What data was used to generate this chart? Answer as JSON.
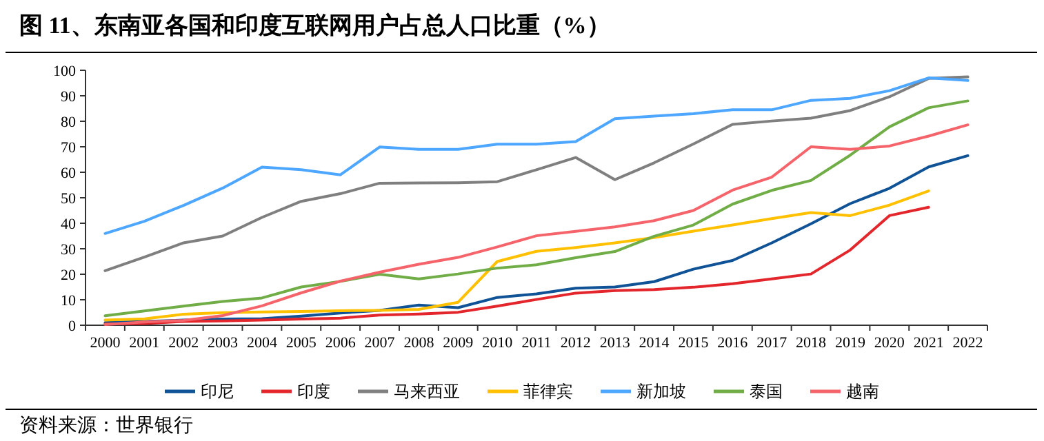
{
  "chart_data": {
    "type": "line",
    "title": "图 11、东南亚各国和印度互联网用户占总人口比重（%）",
    "annotations": [
      "资料来源：世界银行"
    ],
    "categories": [
      "2000",
      "2001",
      "2002",
      "2003",
      "2004",
      "2005",
      "2006",
      "2007",
      "2008",
      "2009",
      "2010",
      "2011",
      "2012",
      "2013",
      "2014",
      "2015",
      "2016",
      "2017",
      "2018",
      "2019",
      "2020",
      "2021",
      "2022"
    ],
    "ylim": [
      0,
      100
    ],
    "yticks": [
      0,
      10,
      20,
      30,
      40,
      50,
      60,
      70,
      80,
      90,
      100
    ],
    "grid": false,
    "legend": "bottom",
    "marker": "none",
    "line_style": "solid",
    "series": [
      {
        "name": "印尼",
        "color": "#0f5296",
        "values": [
          1,
          1.5,
          2,
          2.4,
          2.6,
          3.6,
          4.8,
          5.8,
          7.9,
          6.9,
          10.9,
          12.3,
          14.5,
          15,
          17.1,
          22,
          25.4,
          32.3,
          39.8,
          47.7,
          53.7,
          62.1,
          66.5
        ]
      },
      {
        "name": "印度",
        "color": "#e3262b",
        "values": [
          0.5,
          0.7,
          1.5,
          1.7,
          2,
          2.4,
          2.8,
          4,
          4.4,
          5.1,
          7.5,
          10.1,
          12.6,
          13.6,
          14,
          14.9,
          16.3,
          18.2,
          20.1,
          29.5,
          43,
          46.3,
          null
        ]
      },
      {
        "name": "马来西亚",
        "color": "#7f7f7f",
        "values": [
          21.4,
          26.7,
          32.3,
          35,
          42.3,
          48.6,
          51.6,
          55.7,
          55.8,
          55.9,
          56.3,
          61,
          65.8,
          57.1,
          63.7,
          71.1,
          78.8,
          80.1,
          81.2,
          84.2,
          89.6,
          96.8,
          97.4
        ]
      },
      {
        "name": "菲律宾",
        "color": "#ffc000",
        "values": [
          2,
          2.5,
          4.3,
          4.9,
          5.2,
          5.4,
          5.7,
          5.8,
          6.2,
          9,
          25,
          29,
          30.5,
          32.3,
          34.4,
          36.9,
          39.3,
          41.8,
          44.2,
          43,
          47.1,
          52.7,
          null
        ]
      },
      {
        "name": "新加坡",
        "color": "#4da6ff",
        "values": [
          36,
          40.8,
          47,
          53.8,
          62,
          61,
          59,
          69.9,
          69,
          69,
          71,
          71,
          72,
          81,
          82,
          83,
          84.5,
          84.5,
          88.2,
          89,
          92,
          97,
          96
        ]
      },
      {
        "name": "泰国",
        "color": "#70ad47",
        "values": [
          3.7,
          5.6,
          7.5,
          9.3,
          10.7,
          15,
          17.2,
          20,
          18.2,
          20.1,
          22.4,
          23.7,
          26.5,
          28.9,
          34.9,
          39.3,
          47.5,
          52.9,
          56.8,
          66.7,
          77.8,
          85.3,
          88
        ]
      },
      {
        "name": "越南",
        "color": "#f4646a",
        "values": [
          0.3,
          1.3,
          1.9,
          3.8,
          7.6,
          12.7,
          17.3,
          20.8,
          23.9,
          26.6,
          30.7,
          35.1,
          36.8,
          38.6,
          41,
          45,
          53,
          58.1,
          70,
          69,
          70.3,
          74.2,
          78.6
        ]
      }
    ]
  }
}
